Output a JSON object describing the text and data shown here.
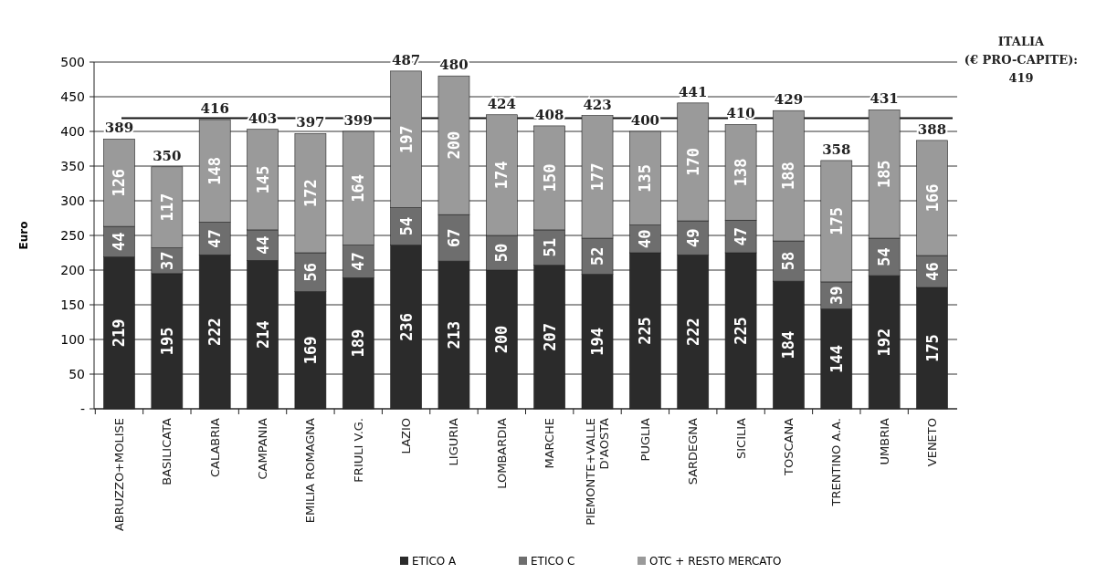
{
  "chart_data": {
    "type": "bar",
    "stacked": true,
    "ylabel": "Euro",
    "categories": [
      "ABRUZZO+MOLISE",
      "BASILICATA",
      "CALABRIA",
      "CAMPANIA",
      "EMILIA ROMAGNA",
      "FRIULI V.G.",
      "LAZIO",
      "LIGURIA",
      "LOMBARDIA",
      "MARCHE",
      "PIEMONTE+VALLE D'AOSTA",
      "PUGLIA",
      "SARDEGNA",
      "SICILIA",
      "TOSCANA",
      "TRENTINO A.A.",
      "UMBRIA",
      "VENETO"
    ],
    "series": [
      {
        "name": "ETICO A",
        "color": "#2b2b2b",
        "values": [
          219,
          195,
          222,
          214,
          169,
          189,
          236,
          213,
          200,
          207,
          194,
          225,
          222,
          225,
          184,
          144,
          192,
          175
        ]
      },
      {
        "name": "ETICO C",
        "color": "#6e6e6e",
        "values": [
          44,
          37,
          47,
          44,
          56,
          47,
          54,
          67,
          50,
          51,
          52,
          40,
          49,
          47,
          58,
          39,
          54,
          46
        ]
      },
      {
        "name": "OTC + RESTO MERCATO",
        "color": "#9a9a9a",
        "values": [
          126,
          117,
          148,
          145,
          172,
          164,
          197,
          200,
          174,
          150,
          177,
          135,
          170,
          138,
          188,
          175,
          185,
          166
        ]
      }
    ],
    "totals": [
      "389",
      "350",
      "416",
      "403",
      "397",
      "399",
      "487",
      "480",
      "424",
      "408",
      "423",
      "400",
      "441",
      "410",
      "429",
      "358",
      "431",
      "388"
    ],
    "ylim": [
      0,
      500
    ],
    "yticks": [
      {
        "value": 0,
        "label": "-"
      },
      50,
      100,
      150,
      200,
      250,
      300,
      350,
      400,
      450,
      500
    ],
    "grid": "y",
    "data_labels": true,
    "legend": "bottom",
    "ref_lines": [
      {
        "axis": "y",
        "value": 419,
        "label": "ITALIA (€ PRO-CAPITE): 419"
      }
    ]
  }
}
